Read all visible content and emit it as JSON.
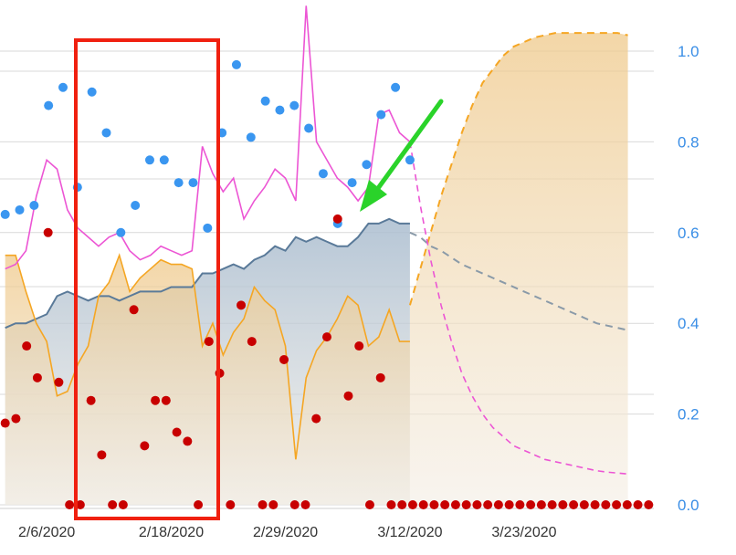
{
  "chart_data": {
    "type": "line",
    "title": "",
    "xlabel": "",
    "ylabel": "",
    "x_tick_labels": [
      "2/6/2020",
      "2/18/2020",
      "2/29/2020",
      "3/12/2020",
      "3/23/2020"
    ],
    "x_tick_days": [
      0,
      12,
      23,
      35,
      46
    ],
    "x_range_days": [
      -4.5,
      58.5
    ],
    "right_axis": {
      "ticks": [
        "0.0",
        "0.2",
        "0.4",
        "0.6",
        "0.8",
        "1.0"
      ],
      "range": [
        0,
        1.0
      ],
      "color": "#3a8ee6"
    },
    "gridlines": true,
    "series": [
      {
        "kind": "area-line",
        "color": "#5a7a99",
        "fill": "#b8c8d8",
        "values": [
          0.39,
          0.4,
          0.4,
          0.41,
          0.42,
          0.46,
          0.47,
          0.46,
          0.45,
          0.46,
          0.46,
          0.45,
          0.46,
          0.47,
          0.47,
          0.47,
          0.48,
          0.48,
          0.48,
          0.51,
          0.51,
          0.52,
          0.53,
          0.52,
          0.54,
          0.55,
          0.57,
          0.56,
          0.59,
          0.58,
          0.59,
          0.58,
          0.57,
          0.57,
          0.59,
          0.62,
          0.62,
          0.63,
          0.62,
          0.62
        ],
        "projection_values": [
          0.6,
          0.59,
          0.57,
          0.56,
          0.545,
          0.53,
          0.52,
          0.51,
          0.5,
          0.49,
          0.48,
          0.47,
          0.46,
          0.45,
          0.44,
          0.43,
          0.42,
          0.41,
          0.4,
          0.395,
          0.39,
          0.385
        ]
      },
      {
        "kind": "area-line",
        "color": "#f5a623",
        "fill": "#ead8b0",
        "values": [
          0.55,
          0.55,
          0.47,
          0.4,
          0.36,
          0.24,
          0.25,
          0.31,
          0.35,
          0.46,
          0.49,
          0.55,
          0.47,
          0.5,
          0.52,
          0.54,
          0.53,
          0.53,
          0.52,
          0.35,
          0.4,
          0.33,
          0.38,
          0.41,
          0.48,
          0.45,
          0.43,
          0.35,
          0.1,
          0.28,
          0.34,
          0.37,
          0.41,
          0.46,
          0.44,
          0.35,
          0.37,
          0.43,
          0.36,
          0.36
        ],
        "projection_values": [
          0.44,
          0.52,
          0.6,
          0.68,
          0.75,
          0.82,
          0.88,
          0.93,
          0.96,
          0.99,
          1.01,
          1.02,
          1.03,
          1.035,
          1.04,
          1.04,
          1.04,
          1.04,
          1.04,
          1.04,
          1.04,
          1.035
        ]
      },
      {
        "kind": "line",
        "color": "#ec55d4",
        "values": [
          0.52,
          0.53,
          0.56,
          0.68,
          0.76,
          0.74,
          0.65,
          0.61,
          0.59,
          0.57,
          0.59,
          0.6,
          0.56,
          0.54,
          0.55,
          0.57,
          0.56,
          0.55,
          0.56,
          0.79,
          0.73,
          0.69,
          0.72,
          0.63,
          0.67,
          0.7,
          0.74,
          0.72,
          0.67,
          1.1,
          0.8,
          0.76,
          0.72,
          0.7,
          0.67,
          0.7,
          0.86,
          0.87,
          0.82,
          0.8
        ],
        "projection_values": [
          0.8,
          0.66,
          0.54,
          0.44,
          0.36,
          0.29,
          0.24,
          0.2,
          0.17,
          0.15,
          0.13,
          0.12,
          0.11,
          0.1,
          0.095,
          0.09,
          0.085,
          0.08,
          0.075,
          0.072,
          0.07,
          0.068
        ]
      },
      {
        "kind": "scatter",
        "color": "#3a96f0",
        "values": [
          0.64,
          0.65,
          0.66,
          0.88,
          0.92,
          0.7,
          0.91,
          0.82,
          0.6,
          0.66,
          0.76,
          0.76,
          0.71,
          0.71,
          0.61,
          0.82,
          0.97,
          0.81,
          0.89,
          0.87,
          0.88,
          0.83,
          0.73,
          0.62,
          0.71,
          0.75,
          0.86,
          0.92,
          0.76
        ]
      },
      {
        "kind": "scatter",
        "color": "#c80000",
        "values": [
          0.18,
          0.19,
          0.35,
          0.28,
          0.6,
          0.27,
          0.0,
          0.0,
          0.23,
          0.11,
          0.0,
          0.0,
          0.43,
          0.13,
          0.23,
          0.23,
          0.16,
          0.14,
          0.0,
          0.36,
          0.29,
          0.0,
          0.44,
          0.36,
          0.0,
          0.0,
          0.32,
          0.0,
          0.0,
          0.19,
          0.37,
          0.63,
          0.24,
          0.35,
          0.0,
          0.28,
          0.0,
          0.0,
          0.0,
          0.0,
          0.0,
          0.0,
          0.0,
          0.0,
          0.0,
          0.0,
          0.0,
          0.0,
          0.0,
          0.0,
          0.0,
          0.0,
          0.0,
          0.0,
          0.0,
          0.0,
          0.0,
          0.0,
          0.0,
          0.0,
          0.0
        ]
      }
    ]
  },
  "annotations": {
    "box_color": "#f02010",
    "arrow_color": "#2ad32a"
  }
}
